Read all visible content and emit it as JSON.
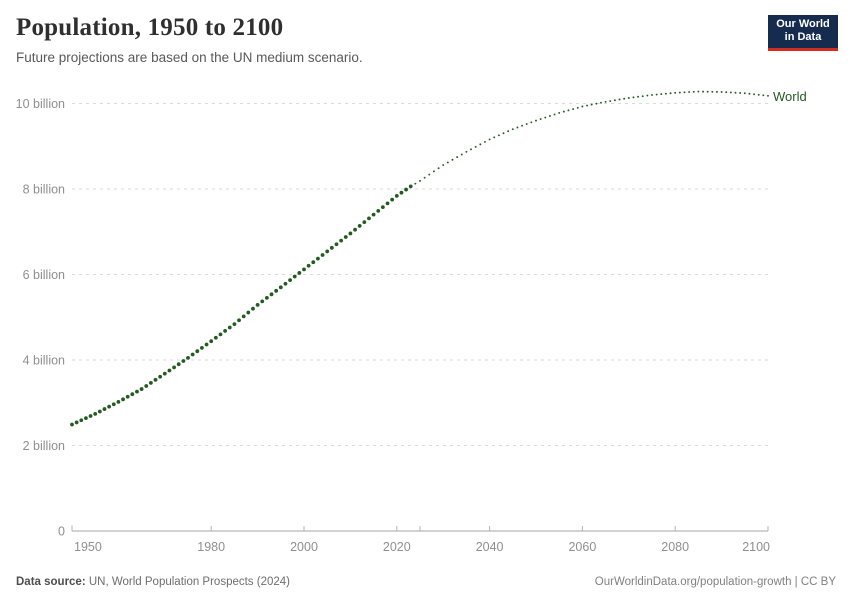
{
  "header": {
    "title": "Population, 1950 to 2100",
    "subtitle": "Future projections are based on the UN medium scenario."
  },
  "logo": {
    "line1": "Our World",
    "line2": "in Data",
    "bg_color": "#152c4e",
    "stripe_color": "#d42b21"
  },
  "footer": {
    "source_label": "Data source:",
    "source_text": " UN, World Population Prospects (2024)",
    "right_text": "OurWorldinData.org/population-growth | CC BY"
  },
  "chart_data": {
    "type": "line",
    "title": "Population, 1950 to 2100",
    "unit": "billion people",
    "line_color": "#245b21",
    "grid": "dashed-horizontal",
    "legend_position": "end-of-line",
    "xlim": [
      1950,
      2100
    ],
    "ylim": [
      0,
      10.5
    ],
    "x_ticks": [
      1950,
      1980,
      2000,
      2020,
      2040,
      2060,
      2080,
      2100
    ],
    "projection_boundary_tick": 2025,
    "y_ticks": [
      {
        "value": 0,
        "label": "0"
      },
      {
        "value": 2,
        "label": "2 billion"
      },
      {
        "value": 4,
        "label": "4 billion"
      },
      {
        "value": 6,
        "label": "6 billion"
      },
      {
        "value": 8,
        "label": "8 billion"
      },
      {
        "value": 10,
        "label": "10 billion"
      }
    ],
    "series": [
      {
        "name": "World",
        "historical": [
          [
            1950,
            2.49
          ],
          [
            1955,
            2.74
          ],
          [
            1960,
            3.02
          ],
          [
            1965,
            3.32
          ],
          [
            1970,
            3.68
          ],
          [
            1975,
            4.05
          ],
          [
            1980,
            4.44
          ],
          [
            1985,
            4.84
          ],
          [
            1990,
            5.29
          ],
          [
            1995,
            5.7
          ],
          [
            2000,
            6.12
          ],
          [
            2005,
            6.54
          ],
          [
            2010,
            6.96
          ],
          [
            2015,
            7.4
          ],
          [
            2020,
            7.84
          ],
          [
            2023,
            8.06
          ]
        ],
        "projection": [
          [
            2023,
            8.06
          ],
          [
            2025,
            8.19
          ],
          [
            2030,
            8.56
          ],
          [
            2035,
            8.87
          ],
          [
            2040,
            9.16
          ],
          [
            2045,
            9.4
          ],
          [
            2050,
            9.6
          ],
          [
            2055,
            9.78
          ],
          [
            2060,
            9.93
          ],
          [
            2065,
            10.04
          ],
          [
            2070,
            10.13
          ],
          [
            2075,
            10.2
          ],
          [
            2080,
            10.25
          ],
          [
            2085,
            10.28
          ],
          [
            2090,
            10.27
          ],
          [
            2095,
            10.24
          ],
          [
            2100,
            10.18
          ]
        ]
      }
    ]
  }
}
